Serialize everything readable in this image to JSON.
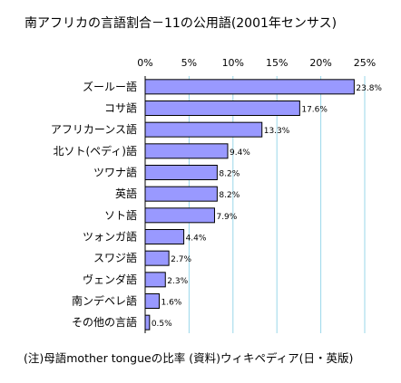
{
  "chart_data": {
    "type": "bar",
    "orientation": "horizontal",
    "title": "南アフリカの言語割合－11の公用語(2001年センサス)",
    "categories": [
      "ズールー語",
      "コサ語",
      "アフリカーンス語",
      "北ソト(ペディ)語",
      "ツワナ語",
      "英語",
      "ソト語",
      "ツォンガ語",
      "スワジ語",
      "ヴェンダ語",
      "南ンデベレ語",
      "その他の言語"
    ],
    "values": [
      23.8,
      17.6,
      13.3,
      9.4,
      8.2,
      8.2,
      7.9,
      4.4,
      2.7,
      2.3,
      1.6,
      0.5
    ],
    "data_labels": [
      "23.8%",
      "17.6%",
      "13.3%",
      "9.4%",
      "8.2%",
      "8.2%",
      "7.9%",
      "4.4%",
      "2.7%",
      "2.3%",
      "1.6%",
      "0.5%"
    ],
    "x_ticks": [
      "0%",
      "5%",
      "10%",
      "15%",
      "20%",
      "25%"
    ],
    "x_tick_values": [
      0,
      5,
      10,
      15,
      20,
      25
    ],
    "xlim": [
      0,
      25
    ],
    "grid": true,
    "bar_color": "#9999ff",
    "grid_color": "#9ad7ea",
    "xlabel": "",
    "ylabel": ""
  },
  "footnote": "(注)母語mother tongueの比率 (資料)ウィキペディア(日・英版)"
}
